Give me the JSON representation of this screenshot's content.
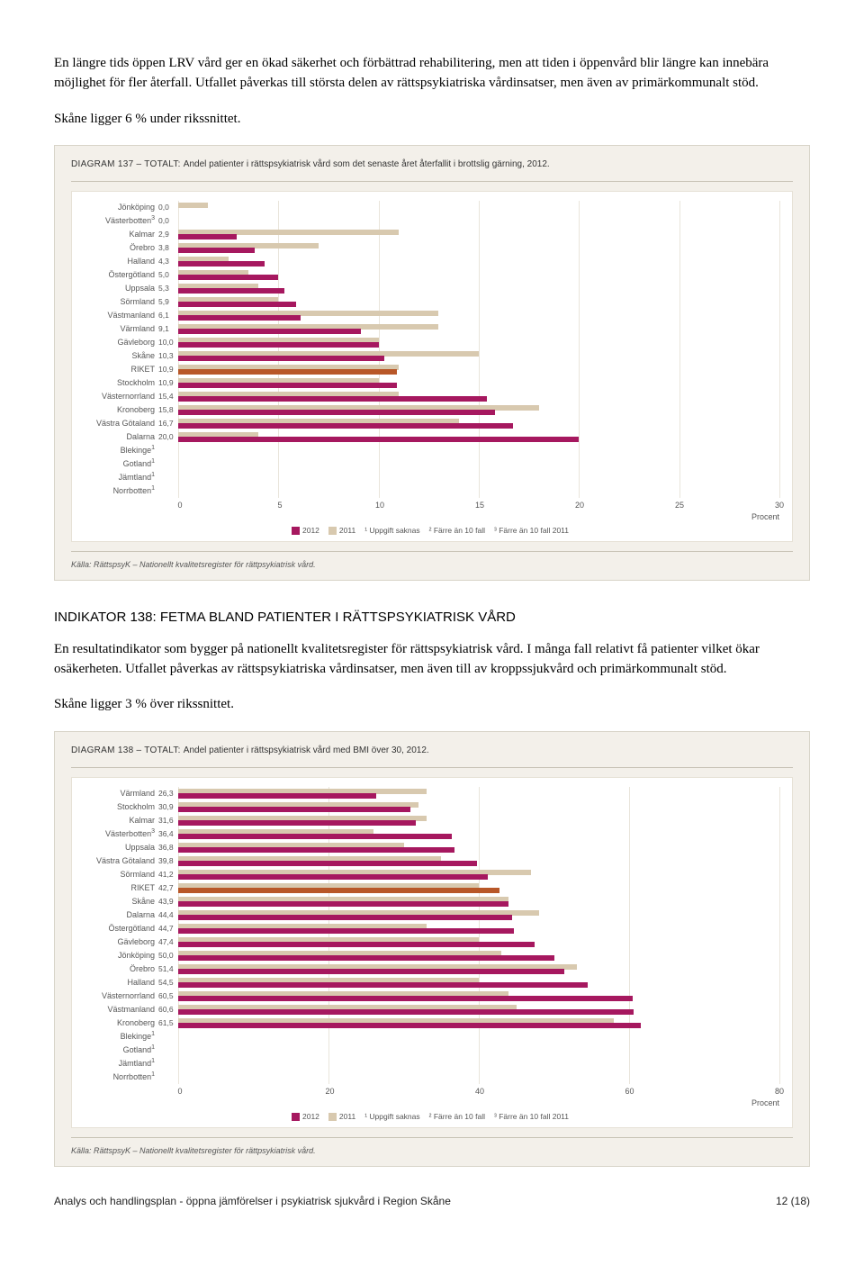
{
  "paragraphs": {
    "p1": "En längre tids öppen LRV vård ger en ökad säkerhet och förbättrad rehabilitering, men att tiden i öppenvård blir längre kan innebära möjlighet för fler återfall. Utfallet påverkas till största delen av rättspsykiatriska vårdinsatser, men även av primärkommunalt stöd.",
    "p2": "Skåne ligger 6 % under rikssnittet.",
    "heading2": "INDIKATOR 138: FETMA BLAND PATIENTER I RÄTTSPSYKIATRISK VÅRD",
    "p3": "En resultatindikator som bygger på nationellt kvalitetsregister för rättspsykiatrisk vård. I många fall relativt få patienter vilket ökar osäkerheten. Utfallet påverkas av rättspsykiatriska vårdinsatser, men även till av kroppssjukvård och primärkommunalt stöd.",
    "p4": "Skåne ligger 3 % över rikssnittet."
  },
  "chart137": {
    "type": "bar",
    "title_prefix": "DIAGRAM 137 – TOTALT: ",
    "title": "Andel patienter i rättspsykiatrisk vård som det senaste året återfallit i brottslig gärning, 2012.",
    "xmax": 30,
    "xticks": [
      0,
      5,
      10,
      15,
      20,
      25,
      30
    ],
    "xlabel": "Procent",
    "bar_color_2012": "#a6185f",
    "bar_color_2011": "#d8c9af",
    "highlight_color": "#b85728",
    "highlight_row": "RIKET",
    "grid_color": "#e9e5db",
    "background": "#f3f0ea",
    "rows": [
      {
        "label": "Jönköping",
        "val_label": "0,0",
        "v2012": 0.0,
        "v2011": 1.5
      },
      {
        "label": "Västerbotten",
        "sup": "3",
        "val_label": "0,0",
        "v2012": 0.0,
        "v2011": 0.0
      },
      {
        "label": "Kalmar",
        "val_label": "2,9",
        "v2012": 2.9,
        "v2011": 11.0
      },
      {
        "label": "Örebro",
        "val_label": "3,8",
        "v2012": 3.8,
        "v2011": 7.0
      },
      {
        "label": "Halland",
        "val_label": "4,3",
        "v2012": 4.3,
        "v2011": 2.5
      },
      {
        "label": "Östergötland",
        "val_label": "5,0",
        "v2012": 5.0,
        "v2011": 3.5
      },
      {
        "label": "Uppsala",
        "val_label": "5,3",
        "v2012": 5.3,
        "v2011": 4.0
      },
      {
        "label": "Sörmland",
        "val_label": "5,9",
        "v2012": 5.9,
        "v2011": 5.0
      },
      {
        "label": "Västmanland",
        "val_label": "6,1",
        "v2012": 6.1,
        "v2011": 13.0
      },
      {
        "label": "Värmland",
        "val_label": "9,1",
        "v2012": 9.1,
        "v2011": 13.0
      },
      {
        "label": "Gävleborg",
        "val_label": "10,0",
        "v2012": 10.0,
        "v2011": 10.0
      },
      {
        "label": "Skåne",
        "val_label": "10,3",
        "v2012": 10.3,
        "v2011": 15.0
      },
      {
        "label": "RIKET",
        "val_label": "10,9",
        "v2012": 10.9,
        "v2011": 11.0
      },
      {
        "label": "Stockholm",
        "val_label": "10,9",
        "v2012": 10.9,
        "v2011": 10.0
      },
      {
        "label": "Västernorrland",
        "val_label": "15,4",
        "v2012": 15.4,
        "v2011": 11.0
      },
      {
        "label": "Kronoberg",
        "val_label": "15,8",
        "v2012": 15.8,
        "v2011": 18.0
      },
      {
        "label": "Västra Götaland",
        "val_label": "16,7",
        "v2012": 16.7,
        "v2011": 14.0
      },
      {
        "label": "Dalarna",
        "val_label": "20,0",
        "v2012": 20.0,
        "v2011": 4.0
      },
      {
        "label": "Blekinge",
        "sup": "1",
        "val_label": "",
        "v2012": null,
        "v2011": null
      },
      {
        "label": "Gotland",
        "sup": "1",
        "val_label": "",
        "v2012": null,
        "v2011": null
      },
      {
        "label": "Jämtland",
        "sup": "1",
        "val_label": "",
        "v2012": null,
        "v2011": null
      },
      {
        "label": "Norrbotten",
        "sup": "1",
        "val_label": "",
        "v2012": null,
        "v2011": null
      }
    ],
    "legend": {
      "l2012": "2012",
      "l2011": "2011",
      "note1": "¹ Uppgift saknas",
      "note2": "² Färre än 10 fall",
      "note3": "³ Färre än 10 fall 2011"
    },
    "source": "Källa: RättspsyK – Nationellt kvalitetsregister för rättpsykiatrisk vård."
  },
  "chart138": {
    "type": "bar",
    "title_prefix": "DIAGRAM 138 – TOTALT: ",
    "title": "Andel patienter i rättspsykiatrisk vård med BMI över 30, 2012.",
    "xmax": 80,
    "xticks": [
      0,
      20,
      40,
      60,
      80
    ],
    "xlabel": "Procent",
    "bar_color_2012": "#a6185f",
    "bar_color_2011": "#d8c9af",
    "highlight_color": "#b85728",
    "highlight_row": "RIKET",
    "grid_color": "#e9e5db",
    "background": "#f3f0ea",
    "rows": [
      {
        "label": "Värmland",
        "val_label": "26,3",
        "v2012": 26.3,
        "v2011": 33.0
      },
      {
        "label": "Stockholm",
        "val_label": "30,9",
        "v2012": 30.9,
        "v2011": 32.0
      },
      {
        "label": "Kalmar",
        "val_label": "31,6",
        "v2012": 31.6,
        "v2011": 33.0
      },
      {
        "label": "Västerbotten",
        "sup": "3",
        "val_label": "36,4",
        "v2012": 36.4,
        "v2011": 26.0
      },
      {
        "label": "Uppsala",
        "val_label": "36,8",
        "v2012": 36.8,
        "v2011": 30.0
      },
      {
        "label": "Västra Götaland",
        "val_label": "39,8",
        "v2012": 39.8,
        "v2011": 35.0
      },
      {
        "label": "Sörmland",
        "val_label": "41,2",
        "v2012": 41.2,
        "v2011": 47.0
      },
      {
        "label": "RIKET",
        "val_label": "42,7",
        "v2012": 42.7,
        "v2011": 40.0
      },
      {
        "label": "Skåne",
        "val_label": "43,9",
        "v2012": 43.9,
        "v2011": 44.0
      },
      {
        "label": "Dalarna",
        "val_label": "44,4",
        "v2012": 44.4,
        "v2011": 48.0
      },
      {
        "label": "Östergötland",
        "val_label": "44,7",
        "v2012": 44.7,
        "v2011": 33.0
      },
      {
        "label": "Gävleborg",
        "val_label": "47,4",
        "v2012": 47.4,
        "v2011": 40.0
      },
      {
        "label": "Jönköping",
        "val_label": "50,0",
        "v2012": 50.0,
        "v2011": 43.0
      },
      {
        "label": "Örebro",
        "val_label": "51,4",
        "v2012": 51.4,
        "v2011": 53.0
      },
      {
        "label": "Halland",
        "val_label": "54,5",
        "v2012": 54.5,
        "v2011": 40.0
      },
      {
        "label": "Västernorrland",
        "val_label": "60,5",
        "v2012": 60.5,
        "v2011": 44.0
      },
      {
        "label": "Västmanland",
        "val_label": "60,6",
        "v2012": 60.6,
        "v2011": 45.0
      },
      {
        "label": "Kronoberg",
        "val_label": "61,5",
        "v2012": 61.5,
        "v2011": 58.0
      },
      {
        "label": "Blekinge",
        "sup": "1",
        "val_label": "",
        "v2012": null,
        "v2011": null
      },
      {
        "label": "Gotland",
        "sup": "1",
        "val_label": "",
        "v2012": null,
        "v2011": null
      },
      {
        "label": "Jämtland",
        "sup": "1",
        "val_label": "",
        "v2012": null,
        "v2011": null
      },
      {
        "label": "Norrbotten",
        "sup": "1",
        "val_label": "",
        "v2012": null,
        "v2011": null
      }
    ],
    "legend": {
      "l2012": "2012",
      "l2011": "2011",
      "note1": "¹ Uppgift saknas",
      "note2": "² Färre än 10 fall",
      "note3": "³ Färre än 10 fall 2011"
    },
    "source": "Källa: RättspsyK – Nationellt kvalitetsregister för rättpsykiatrisk vård."
  },
  "footer": {
    "left": "Analys och handlingsplan - öppna jämförelser i psykiatrisk sjukvård i Region Skåne",
    "right": "12 (18)"
  }
}
